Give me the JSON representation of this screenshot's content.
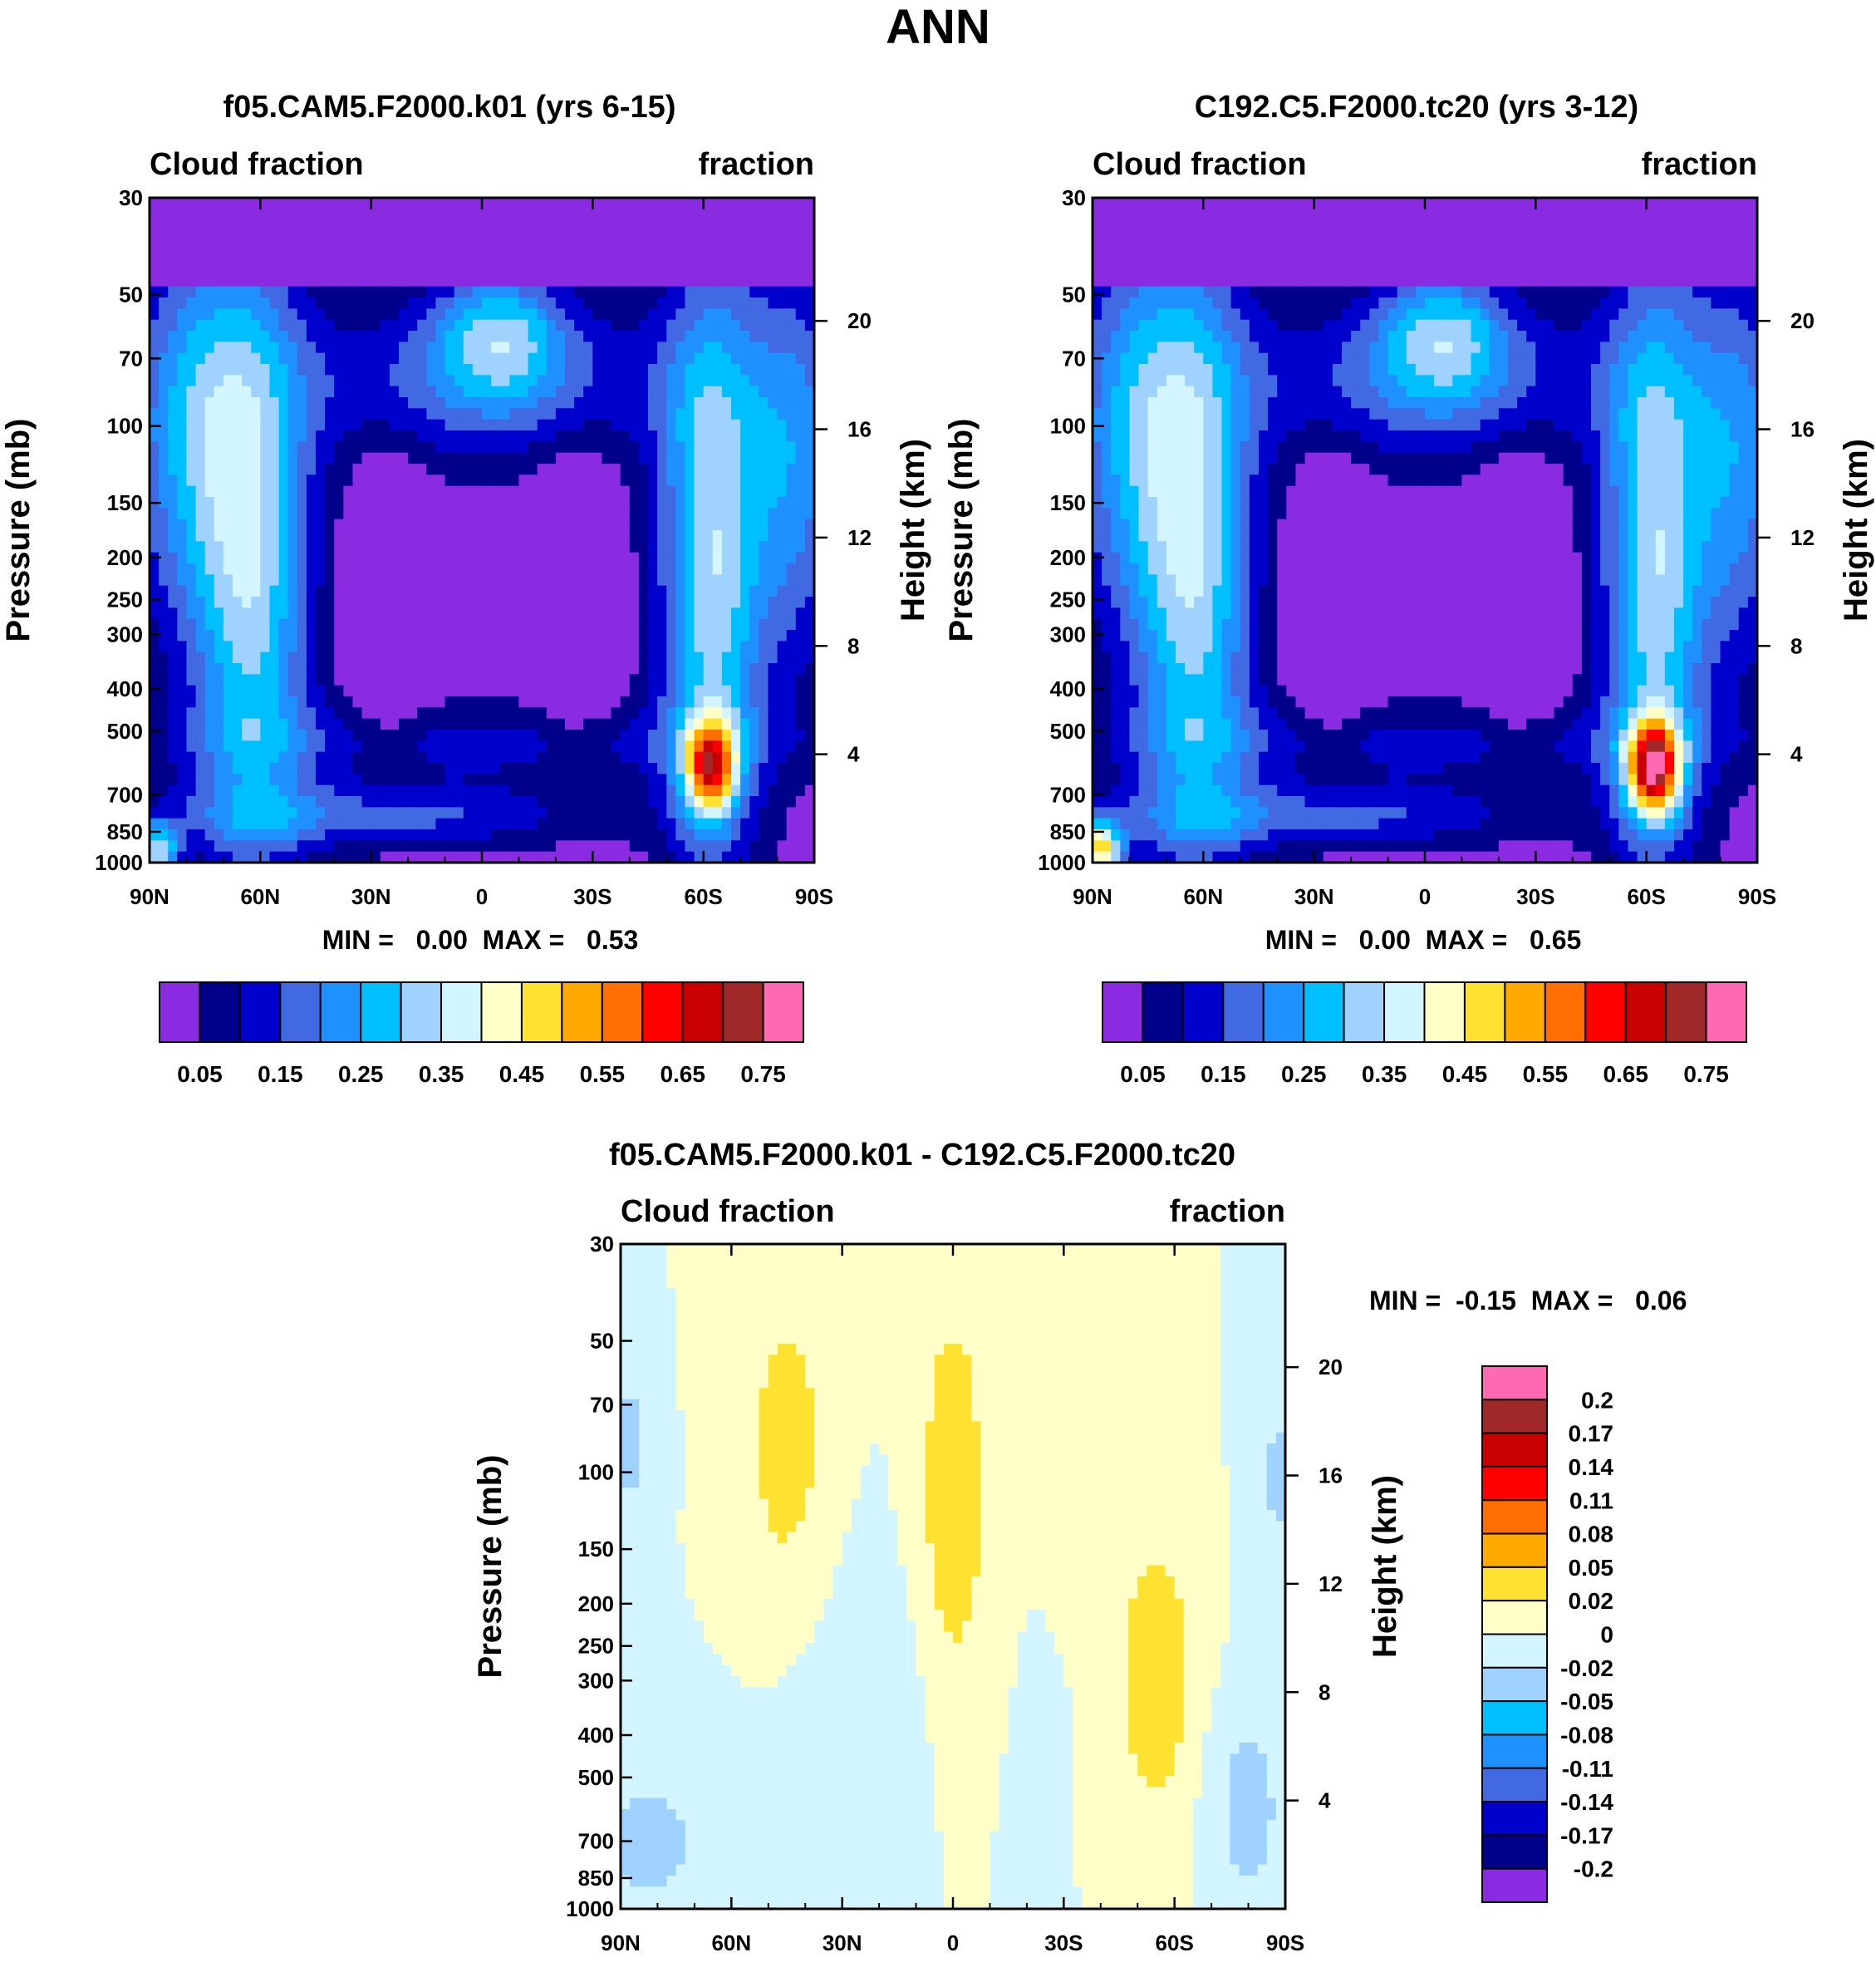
{
  "figure": {
    "title": "ANN"
  },
  "colors": {
    "abs_palette": [
      "#8a2be2",
      "#00008b",
      "#0000cd",
      "#4169e1",
      "#1e90ff",
      "#00bfff",
      "#a0d2ff",
      "#d2f5ff",
      "#ffffc8",
      "#ffe132",
      "#ffaa00",
      "#ff6e00",
      "#ff0000",
      "#c80000",
      "#a02828",
      "#ff69b4"
    ],
    "diff_palette": [
      "#8a2be2",
      "#00008b",
      "#0000cd",
      "#4169e1",
      "#1e90ff",
      "#00bfff",
      "#a0d2ff",
      "#d2f5ff",
      "#ffffc8",
      "#ffe132",
      "#ffaa00",
      "#ff6e00",
      "#ff0000",
      "#c80000",
      "#a02828",
      "#ff69b4"
    ]
  },
  "chart_data": [
    {
      "type": "heatmap",
      "title": "f05.CAM5.F2000.k01 (yrs 6-15)",
      "left_label": "Cloud fraction",
      "right_label": "fraction",
      "xlabel": "",
      "ylabel": "Pressure (mb)",
      "ylabel_right": "Height (km)",
      "x_ticks": [
        "90N",
        "60N",
        "30N",
        "0",
        "30S",
        "60S",
        "90S"
      ],
      "x_values": [
        90,
        60,
        30,
        0,
        -30,
        -60,
        -90
      ],
      "y_ticks": [
        30,
        50,
        70,
        100,
        150,
        200,
        250,
        300,
        400,
        500,
        700,
        850,
        1000
      ],
      "y_tick_labels": [
        "30",
        "50",
        "70",
        "100",
        "150",
        "200",
        "250",
        "300",
        "400",
        "500",
        "700",
        "850",
        "1000"
      ],
      "height_ticks": [
        20,
        16,
        12,
        8,
        4
      ],
      "height_tick_labels": [
        "20",
        "16",
        "12",
        "8",
        "4"
      ],
      "min_label": "MIN =   0.00  MAX =   0.53",
      "min": 0.0,
      "max": 0.53,
      "colorbar_labels": [
        "0.05",
        "0.15",
        "0.25",
        "0.35",
        "0.45",
        "0.55",
        "0.65",
        "0.75"
      ],
      "levels": [
        0,
        0.05,
        0.1,
        0.15,
        0.2,
        0.25,
        0.3,
        0.35,
        0.4,
        0.45,
        0.5,
        0.55,
        0.6,
        0.65,
        0.7,
        0.75
      ],
      "variant": "model_a"
    },
    {
      "type": "heatmap",
      "title": "C192.C5.F2000.tc20 (yrs 3-12)",
      "left_label": "Cloud fraction",
      "right_label": "fraction",
      "xlabel": "",
      "ylabel": "Pressure (mb)",
      "ylabel_right": "Height (km)",
      "x_ticks": [
        "90N",
        "60N",
        "30N",
        "0",
        "30S",
        "60S",
        "90S"
      ],
      "x_values": [
        90,
        60,
        30,
        0,
        -30,
        -60,
        -90
      ],
      "y_ticks": [
        30,
        50,
        70,
        100,
        150,
        200,
        250,
        300,
        400,
        500,
        700,
        850,
        1000
      ],
      "y_tick_labels": [
        "30",
        "50",
        "70",
        "100",
        "150",
        "200",
        "250",
        "300",
        "400",
        "500",
        "700",
        "850",
        "1000"
      ],
      "height_ticks": [
        20,
        16,
        12,
        8,
        4
      ],
      "height_tick_labels": [
        "20",
        "16",
        "12",
        "8",
        "4"
      ],
      "min_label": "MIN =   0.00  MAX =   0.65",
      "min": 0.0,
      "max": 0.65,
      "colorbar_labels": [
        "0.05",
        "0.15",
        "0.25",
        "0.35",
        "0.45",
        "0.55",
        "0.65",
        "0.75"
      ],
      "levels": [
        0,
        0.05,
        0.1,
        0.15,
        0.2,
        0.25,
        0.3,
        0.35,
        0.4,
        0.45,
        0.5,
        0.55,
        0.6,
        0.65,
        0.7,
        0.75
      ],
      "variant": "model_b"
    },
    {
      "type": "heatmap",
      "title": "f05.CAM5.F2000.k01 - C192.C5.F2000.tc20",
      "left_label": "Cloud fraction",
      "right_label": "fraction",
      "xlabel": "",
      "ylabel": "Pressure (mb)",
      "ylabel_right": "Height (km)",
      "x_ticks": [
        "90N",
        "60N",
        "30N",
        "0",
        "30S",
        "60S",
        "90S"
      ],
      "x_values": [
        90,
        60,
        30,
        0,
        -30,
        -60,
        -90
      ],
      "y_ticks": [
        30,
        50,
        70,
        100,
        150,
        200,
        250,
        300,
        400,
        500,
        700,
        850,
        1000
      ],
      "y_tick_labels": [
        "30",
        "50",
        "70",
        "100",
        "150",
        "200",
        "250",
        "300",
        "400",
        "500",
        "700",
        "850",
        "1000"
      ],
      "height_ticks": [
        20,
        16,
        12,
        8,
        4
      ],
      "height_tick_labels": [
        "20",
        "16",
        "12",
        "8",
        "4"
      ],
      "min_label": "MIN =  -0.15  MAX =   0.06",
      "min": -0.15,
      "max": 0.06,
      "colorbar_labels": [
        "0.2",
        "0.17",
        "0.14",
        "0.11",
        "0.08",
        "0.05",
        "0.02",
        "0",
        "-0.02",
        "-0.05",
        "-0.08",
        "-0.11",
        "-0.14",
        "-0.17",
        "-0.2"
      ],
      "levels": [
        -0.2,
        -0.17,
        -0.14,
        -0.11,
        -0.08,
        -0.05,
        -0.02,
        0,
        0.02,
        0.05,
        0.08,
        0.11,
        0.14,
        0.17,
        0.2
      ],
      "variant": "diff"
    }
  ]
}
